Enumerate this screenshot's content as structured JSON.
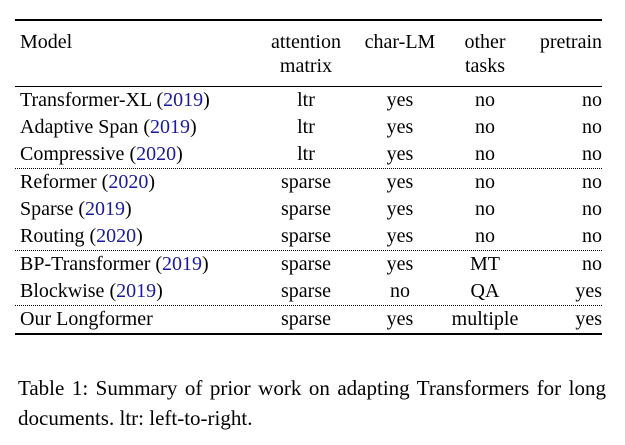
{
  "table": {
    "headers": {
      "model": "Model",
      "attention_1": "attention",
      "attention_2": "matrix",
      "char_lm": "char-LM",
      "other_1": "other",
      "other_2": "tasks",
      "pretrain": "pretrain"
    },
    "groups": [
      [
        {
          "name": "Transformer-XL",
          "open": " (",
          "year": "2019",
          "close": ")",
          "attention": "ltr",
          "char_lm": "yes",
          "other": "no",
          "pretrain": "no"
        },
        {
          "name": "Adaptive Span",
          "open": " (",
          "year": "2019",
          "close": ")",
          "attention": "ltr",
          "char_lm": "yes",
          "other": "no",
          "pretrain": "no"
        },
        {
          "name": "Compressive",
          "open": " (",
          "year": "2020",
          "close": ")",
          "attention": "ltr",
          "char_lm": "yes",
          "other": "no",
          "pretrain": "no"
        }
      ],
      [
        {
          "name": "Reformer",
          "open": " (",
          "year": "2020",
          "close": ")",
          "attention": "sparse",
          "char_lm": "yes",
          "other": "no",
          "pretrain": "no"
        },
        {
          "name": "Sparse",
          "open": " (",
          "year": "2019",
          "close": ")",
          "attention": "sparse",
          "char_lm": "yes",
          "other": "no",
          "pretrain": "no"
        },
        {
          "name": "Routing",
          "open": " (",
          "year": "2020",
          "close": ")",
          "attention": "sparse",
          "char_lm": "yes",
          "other": "no",
          "pretrain": "no"
        }
      ],
      [
        {
          "name": "BP-Transformer",
          "open": " (",
          "year": "2019",
          "close": ")",
          "attention": "sparse",
          "char_lm": "yes",
          "other": "MT",
          "pretrain": "no"
        },
        {
          "name": "Blockwise",
          "open": " (",
          "year": "2019",
          "close": ")",
          "attention": "sparse",
          "char_lm": "no",
          "other": "QA",
          "pretrain": "yes"
        }
      ],
      [
        {
          "name": "Our Longformer",
          "open": "",
          "year": "",
          "close": "",
          "attention": "sparse",
          "char_lm": "yes",
          "other": "multiple",
          "pretrain": "yes"
        }
      ]
    ]
  },
  "caption": "Table 1: Summary of prior work on adapting Transformers for long documents. ltr: left-to-right.",
  "colors": {
    "citation_year": "#1a1a9e"
  }
}
